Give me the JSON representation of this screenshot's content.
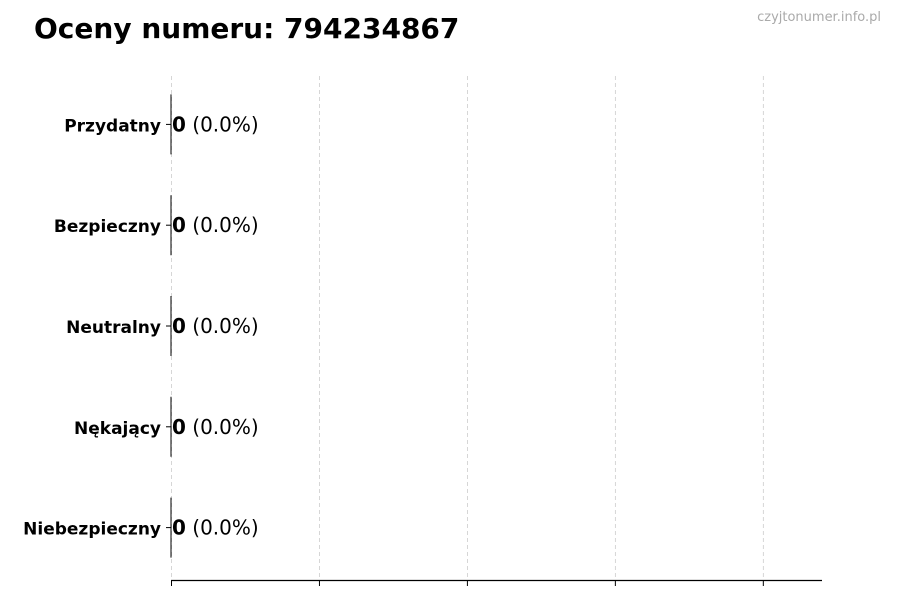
{
  "title": "Oceny numeru: 794234867",
  "watermark": "czyjtonumer.info.pl",
  "chart_data": {
    "type": "bar",
    "orientation": "horizontal",
    "title": "Oceny numeru: 794234867",
    "xlabel": "",
    "ylabel": "",
    "categories": [
      "Przydatny",
      "Bezpieczny",
      "Neutralny",
      "Nękający",
      "Niebezpieczny"
    ],
    "values": [
      0,
      0,
      0,
      0,
      0
    ],
    "data_labels": [
      {
        "count": "0",
        "pct": "(0.0%)"
      },
      {
        "count": "0",
        "pct": "(0.0%)"
      },
      {
        "count": "0",
        "pct": "(0.0%)"
      },
      {
        "count": "0",
        "pct": "(0.0%)"
      },
      {
        "count": "0",
        "pct": "(0.0%)"
      }
    ],
    "xlim": [
      0,
      4.4
    ],
    "xticks": [
      0,
      1,
      2,
      3,
      4
    ],
    "xtick_labels_shown": false,
    "grid": "x-dashed",
    "bar_edge_color": "#000000",
    "grid_color": "#cccccc"
  }
}
